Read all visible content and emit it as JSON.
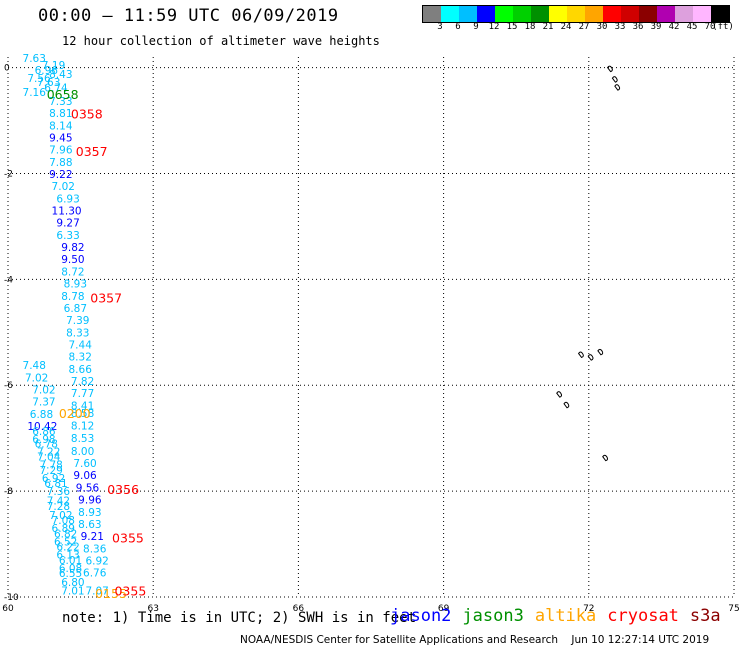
{
  "header": {
    "title": "00:00 – 11:59 UTC 06/09/2019",
    "subtitle": "12 hour collection of altimeter wave heights"
  },
  "colorbar": {
    "colors": [
      "#7f7f7f",
      "#00ffff",
      "#00bfff",
      "#0000ff",
      "#00ff00",
      "#00d000",
      "#009000",
      "#ffff00",
      "#ffd700",
      "#ffa500",
      "#ff0000",
      "#d00000",
      "#8b0000",
      "#b000b0",
      "#dda0dd",
      "#ffb6ff",
      "#000000"
    ],
    "labels": [
      "3",
      "6",
      "9",
      "12",
      "15",
      "18",
      "21",
      "24",
      "27",
      "30",
      "33",
      "36",
      "39",
      "42",
      "45",
      "70",
      "(ft)"
    ]
  },
  "map": {
    "x_ticks": [
      "60",
      "63",
      "66",
      "69",
      "72",
      "75"
    ],
    "x_values": [
      60,
      63,
      66,
      69,
      72,
      75
    ],
    "y_ticks": [
      "0",
      "-2",
      "-4",
      "-6",
      "-8",
      "-10"
    ],
    "y_values": [
      0,
      -2,
      -4,
      -6,
      -8,
      -10
    ],
    "xlim": [
      60,
      75
    ],
    "ylim": [
      -10,
      0.2
    ]
  },
  "observations": [
    {
      "v": "7.63",
      "lon": 60.3,
      "lat": 0.18,
      "c": "#00bfff"
    },
    {
      "v": "7.19",
      "lon": 60.7,
      "lat": 0.05,
      "c": "#00bfff"
    },
    {
      "v": "6.96",
      "lon": 60.55,
      "lat": -0.05,
      "c": "#00bfff"
    },
    {
      "v": "8.43",
      "lon": 60.85,
      "lat": -0.12,
      "c": "#00bfff"
    },
    {
      "v": "7.56",
      "lon": 60.4,
      "lat": -0.2,
      "c": "#00bfff"
    },
    {
      "v": "7.63",
      "lon": 60.6,
      "lat": -0.27,
      "c": "#00bfff"
    },
    {
      "v": "7.16",
      "lon": 60.3,
      "lat": -0.46,
      "c": "#00bfff"
    },
    {
      "v": "6.74",
      "lon": 60.75,
      "lat": -0.38,
      "c": "#00bfff"
    },
    {
      "v": "7.33",
      "lon": 60.85,
      "lat": -0.63,
      "c": "#00bfff"
    },
    {
      "v": "8.81",
      "lon": 60.85,
      "lat": -0.86,
      "c": "#00bfff"
    },
    {
      "v": "8.14",
      "lon": 60.85,
      "lat": -1.09,
      "c": "#00bfff"
    },
    {
      "v": "9.45",
      "lon": 60.85,
      "lat": -1.32,
      "c": "#0000ff"
    },
    {
      "v": "7.96",
      "lon": 60.85,
      "lat": -1.55,
      "c": "#00bfff"
    },
    {
      "v": "7.88",
      "lon": 60.85,
      "lat": -1.78,
      "c": "#00bfff"
    },
    {
      "v": "9.22",
      "lon": 60.85,
      "lat": -2.01,
      "c": "#0000ff"
    },
    {
      "v": "7.02",
      "lon": 60.9,
      "lat": -2.24,
      "c": "#00bfff"
    },
    {
      "v": "6.93",
      "lon": 61.0,
      "lat": -2.47,
      "c": "#00bfff"
    },
    {
      "v": "11.30",
      "lon": 60.9,
      "lat": -2.7,
      "c": "#0000ff"
    },
    {
      "v": "9.27",
      "lon": 61.0,
      "lat": -2.93,
      "c": "#0000ff"
    },
    {
      "v": "6.33",
      "lon": 61.0,
      "lat": -3.16,
      "c": "#00bfff"
    },
    {
      "v": "9.82",
      "lon": 61.1,
      "lat": -3.39,
      "c": "#0000ff"
    },
    {
      "v": "9.50",
      "lon": 61.1,
      "lat": -3.62,
      "c": "#0000ff"
    },
    {
      "v": "8.72",
      "lon": 61.1,
      "lat": -3.85,
      "c": "#00bfff"
    },
    {
      "v": "8.93",
      "lon": 61.15,
      "lat": -4.08,
      "c": "#00bfff"
    },
    {
      "v": "8.78",
      "lon": 61.1,
      "lat": -4.31,
      "c": "#00bfff"
    },
    {
      "v": "6.87",
      "lon": 61.15,
      "lat": -4.54,
      "c": "#00bfff"
    },
    {
      "v": "7.39",
      "lon": 61.2,
      "lat": -4.77,
      "c": "#00bfff"
    },
    {
      "v": "8.33",
      "lon": 61.2,
      "lat": -5.0,
      "c": "#00bfff"
    },
    {
      "v": "7.44",
      "lon": 61.25,
      "lat": -5.23,
      "c": "#00bfff"
    },
    {
      "v": "8.32",
      "lon": 61.25,
      "lat": -5.46,
      "c": "#00bfff"
    },
    {
      "v": "8.66",
      "lon": 61.25,
      "lat": -5.69,
      "c": "#00bfff"
    },
    {
      "v": "7.82",
      "lon": 61.3,
      "lat": -5.92,
      "c": "#00bfff"
    },
    {
      "v": "7.77",
      "lon": 61.3,
      "lat": -6.15,
      "c": "#00bfff"
    },
    {
      "v": "8.41",
      "lon": 61.3,
      "lat": -6.38,
      "c": "#00bfff"
    },
    {
      "v": "8.58",
      "lon": 61.3,
      "lat": -6.52,
      "c": "#00bfff"
    },
    {
      "v": "8.12",
      "lon": 61.3,
      "lat": -6.76,
      "c": "#00bfff"
    },
    {
      "v": "8.53",
      "lon": 61.3,
      "lat": -7.0,
      "c": "#00bfff"
    },
    {
      "v": "8.00",
      "lon": 61.3,
      "lat": -7.24,
      "c": "#00bfff"
    },
    {
      "v": "7.60",
      "lon": 61.35,
      "lat": -7.47,
      "c": "#00bfff"
    },
    {
      "v": "9.06",
      "lon": 61.35,
      "lat": -7.7,
      "c": "#0000ff"
    },
    {
      "v": "9.56",
      "lon": 61.4,
      "lat": -7.93,
      "c": "#0000ff"
    },
    {
      "v": "9.96",
      "lon": 61.45,
      "lat": -8.16,
      "c": "#0000ff"
    },
    {
      "v": "8.93",
      "lon": 61.45,
      "lat": -8.39,
      "c": "#00bfff"
    },
    {
      "v": "8.63",
      "lon": 61.45,
      "lat": -8.62,
      "c": "#00bfff"
    },
    {
      "v": "9.21",
      "lon": 61.5,
      "lat": -8.85,
      "c": "#0000ff"
    },
    {
      "v": "8.36",
      "lon": 61.55,
      "lat": -9.08,
      "c": "#00bfff"
    },
    {
      "v": "6.92",
      "lon": 61.6,
      "lat": -9.31,
      "c": "#00bfff"
    },
    {
      "v": "6.76",
      "lon": 61.55,
      "lat": -9.54,
      "c": "#00bfff"
    },
    {
      "v": "7.48",
      "lon": 60.3,
      "lat": -5.62,
      "c": "#00bfff"
    },
    {
      "v": "7.02",
      "lon": 60.35,
      "lat": -5.85,
      "c": "#00bfff"
    },
    {
      "v": "7.02",
      "lon": 60.5,
      "lat": -6.08,
      "c": "#00bfff"
    },
    {
      "v": "7.37",
      "lon": 60.5,
      "lat": -6.31,
      "c": "#00bfff"
    },
    {
      "v": "6.88",
      "lon": 60.45,
      "lat": -6.54,
      "c": "#00bfff"
    },
    {
      "v": "10.42",
      "lon": 60.4,
      "lat": -6.77,
      "c": "#0000ff"
    },
    {
      "v": "6.86",
      "lon": 60.5,
      "lat": -6.86,
      "c": "#00bfff"
    },
    {
      "v": "6.98",
      "lon": 60.5,
      "lat": -7.02,
      "c": "#00bfff"
    },
    {
      "v": "6.78",
      "lon": 60.55,
      "lat": -7.1,
      "c": "#00bfff"
    },
    {
      "v": "7.22",
      "lon": 60.6,
      "lat": -7.25,
      "c": "#00bfff"
    },
    {
      "v": "7.04",
      "lon": 60.6,
      "lat": -7.35,
      "c": "#00bfff"
    },
    {
      "v": "7.78",
      "lon": 60.65,
      "lat": -7.5,
      "c": "#00bfff"
    },
    {
      "v": "7.29",
      "lon": 60.65,
      "lat": -7.6,
      "c": "#00bfff"
    },
    {
      "v": "6.92",
      "lon": 60.7,
      "lat": -7.75,
      "c": "#00bfff"
    },
    {
      "v": "6.81",
      "lon": 60.75,
      "lat": -7.85,
      "c": "#00bfff"
    },
    {
      "v": "7.36",
      "lon": 60.8,
      "lat": -8.0,
      "c": "#00bfff"
    },
    {
      "v": "7.42",
      "lon": 60.8,
      "lat": -8.18,
      "c": "#00bfff"
    },
    {
      "v": "7.28",
      "lon": 60.8,
      "lat": -8.28,
      "c": "#00bfff"
    },
    {
      "v": "7.02",
      "lon": 60.85,
      "lat": -8.45,
      "c": "#00bfff"
    },
    {
      "v": "7.08",
      "lon": 60.9,
      "lat": -8.55,
      "c": "#00bfff"
    },
    {
      "v": "6.89",
      "lon": 60.9,
      "lat": -8.7,
      "c": "#00bfff"
    },
    {
      "v": "6.82",
      "lon": 60.95,
      "lat": -8.8,
      "c": "#00bfff"
    },
    {
      "v": "6.52",
      "lon": 60.95,
      "lat": -8.95,
      "c": "#00bfff"
    },
    {
      "v": "6.22",
      "lon": 61.0,
      "lat": -9.05,
      "c": "#00bfff"
    },
    {
      "v": "6.13",
      "lon": 61.0,
      "lat": -9.2,
      "c": "#00bfff"
    },
    {
      "v": "6.01",
      "lon": 61.05,
      "lat": -9.3,
      "c": "#00bfff"
    },
    {
      "v": "6.08",
      "lon": 61.05,
      "lat": -9.45,
      "c": "#00bfff"
    },
    {
      "v": "6.55",
      "lon": 61.05,
      "lat": -9.55,
      "c": "#00bfff"
    },
    {
      "v": "6.80",
      "lon": 61.1,
      "lat": -9.72,
      "c": "#00bfff"
    },
    {
      "v": "7.01",
      "lon": 61.1,
      "lat": -9.88,
      "c": "#00bfff"
    },
    {
      "v": "7.07",
      "lon": 61.6,
      "lat": -9.88,
      "c": "#00bfff"
    }
  ],
  "time_labels": [
    {
      "t": "0658",
      "lon": 60.8,
      "lat": -0.5,
      "c": "#009000"
    },
    {
      "t": "0358",
      "lon": 61.3,
      "lat": -0.87,
      "c": "#ff0000"
    },
    {
      "t": "0357",
      "lon": 61.4,
      "lat": -1.58,
      "c": "#ff0000"
    },
    {
      "t": "0357",
      "lon": 61.7,
      "lat": -4.34,
      "c": "#ff0000"
    },
    {
      "t": "0200",
      "lon": 61.05,
      "lat": -6.52,
      "c": "#ffa500"
    },
    {
      "t": "0356",
      "lon": 62.05,
      "lat": -7.96,
      "c": "#ff0000"
    },
    {
      "t": "0355",
      "lon": 62.15,
      "lat": -8.88,
      "c": "#ff0000"
    },
    {
      "t": "0155",
      "lon": 61.8,
      "lat": -9.92,
      "c": "#ffa500"
    },
    {
      "t": "0355",
      "lon": 62.2,
      "lat": -9.88,
      "c": "#ff0000"
    }
  ],
  "islands": [
    {
      "lon": 72.45,
      "lat": 0.0
    },
    {
      "lon": 72.55,
      "lat": -0.2
    },
    {
      "lon": 72.6,
      "lat": -0.35
    },
    {
      "lon": 71.85,
      "lat": -5.4
    },
    {
      "lon": 72.05,
      "lat": -5.45
    },
    {
      "lon": 72.25,
      "lat": -5.35
    },
    {
      "lon": 71.4,
      "lat": -6.15
    },
    {
      "lon": 71.55,
      "lat": -6.35
    },
    {
      "lon": 72.35,
      "lat": -7.35
    }
  ],
  "footer": {
    "note": "note:  1) Time is in UTC;  2) SWH is in feet",
    "legend": [
      {
        "name": "jason2",
        "color": "#0000ff"
      },
      {
        "name": "jason3",
        "color": "#009000"
      },
      {
        "name": "altika",
        "color": "#ffa500"
      },
      {
        "name": "cryosat",
        "color": "#ff0000"
      },
      {
        "name": "s3a",
        "color": "#8b0000"
      }
    ],
    "credit_org": "NOAA/NESDIS Center for Satellite Applications and Research",
    "credit_time": "Jun 10 12:27:14 UTC 2019"
  }
}
